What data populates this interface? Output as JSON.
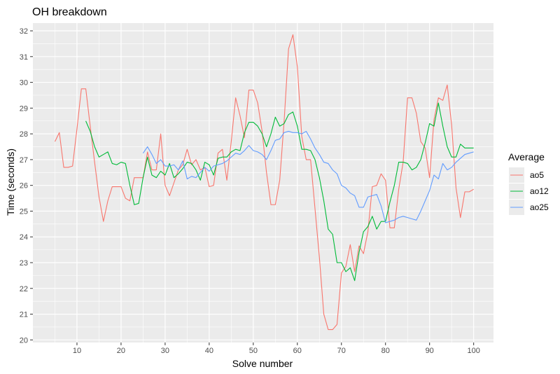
{
  "chart_data": {
    "type": "line",
    "title": "OH breakdown",
    "xlabel": "Solve number",
    "ylabel": "Time (seconds)",
    "xlim": [
      0,
      104.5
    ],
    "ylim": [
      19.9,
      32.3
    ],
    "xticks": [
      10,
      20,
      30,
      40,
      50,
      60,
      70,
      80,
      90,
      100
    ],
    "yticks": [
      20,
      21,
      22,
      23,
      24,
      25,
      26,
      27,
      28,
      29,
      30,
      31,
      32
    ],
    "grid": true,
    "panel_background": "#ebebeb",
    "legend": {
      "title": "Average",
      "placement": "right"
    },
    "series": [
      {
        "name": "ao5",
        "color": "#f8766d",
        "x": [
          5,
          6,
          7,
          8,
          9,
          10,
          11,
          12,
          13,
          14,
          15,
          16,
          17,
          18,
          19,
          20,
          21,
          22,
          23,
          24,
          25,
          26,
          27,
          28,
          29,
          30,
          31,
          32,
          33,
          34,
          35,
          36,
          37,
          38,
          39,
          40,
          41,
          42,
          43,
          44,
          45,
          46,
          47,
          48,
          49,
          50,
          51,
          52,
          53,
          54,
          55,
          56,
          57,
          58,
          59,
          60,
          61,
          62,
          63,
          64,
          65,
          66,
          67,
          68,
          69,
          70,
          71,
          72,
          73,
          74,
          75,
          76,
          77,
          78,
          79,
          80,
          81,
          82,
          83,
          84,
          85,
          86,
          87,
          88,
          89,
          90,
          91,
          92,
          93,
          94,
          95,
          96,
          97,
          98,
          99,
          100
        ],
        "values": [
          27.7,
          28.05,
          26.7,
          26.7,
          26.75,
          28.2,
          29.75,
          29.75,
          28.3,
          26.9,
          25.55,
          24.6,
          25.4,
          25.95,
          25.95,
          25.95,
          25.5,
          25.4,
          26.3,
          26.3,
          26.3,
          27.3,
          26.6,
          26.6,
          28.0,
          26.0,
          25.6,
          26.1,
          26.6,
          26.8,
          27.4,
          26.8,
          27.0,
          26.6,
          26.7,
          25.95,
          26.0,
          27.25,
          27.4,
          26.2,
          27.7,
          29.4,
          28.7,
          27.85,
          29.7,
          29.7,
          29.2,
          28.1,
          26.5,
          25.25,
          25.25,
          26.2,
          28.5,
          31.3,
          31.85,
          30.6,
          27.9,
          27.0,
          27.0,
          25.1,
          23.2,
          21.0,
          20.4,
          20.4,
          20.6,
          22.6,
          22.85,
          23.7,
          22.65,
          23.65,
          23.35,
          24.2,
          25.95,
          26.0,
          26.45,
          26.2,
          24.35,
          24.35,
          25.85,
          26.9,
          29.4,
          29.4,
          28.8,
          27.7,
          27.45,
          26.3,
          28.55,
          29.4,
          29.3,
          29.9,
          28.35,
          25.9,
          24.75,
          25.75,
          25.75,
          25.85
        ]
      },
      {
        "name": "ao12",
        "color": "#00ba38",
        "x": [
          12,
          13,
          14,
          15,
          16,
          17,
          18,
          19,
          20,
          21,
          22,
          23,
          24,
          25,
          26,
          27,
          28,
          29,
          30,
          31,
          32,
          33,
          34,
          35,
          36,
          37,
          38,
          39,
          40,
          41,
          42,
          43,
          44,
          45,
          46,
          47,
          48,
          49,
          50,
          51,
          52,
          53,
          54,
          55,
          56,
          57,
          58,
          59,
          60,
          61,
          62,
          63,
          64,
          65,
          66,
          67,
          68,
          69,
          70,
          71,
          72,
          73,
          74,
          75,
          76,
          77,
          78,
          79,
          80,
          81,
          82,
          83,
          84,
          85,
          86,
          87,
          88,
          89,
          90,
          91,
          92,
          93,
          94,
          95,
          96,
          97,
          98,
          99,
          100
        ],
        "values": [
          28.5,
          28.1,
          27.5,
          27.1,
          27.2,
          27.3,
          26.85,
          26.8,
          26.9,
          26.85,
          26.0,
          25.25,
          25.3,
          26.3,
          27.1,
          26.4,
          26.3,
          26.55,
          26.4,
          26.85,
          26.3,
          26.45,
          26.65,
          26.9,
          26.85,
          26.6,
          26.2,
          26.9,
          26.8,
          26.4,
          27.05,
          27.1,
          27.1,
          27.3,
          27.4,
          27.35,
          28.05,
          28.45,
          28.45,
          28.3,
          28.0,
          27.5,
          28.0,
          28.65,
          28.3,
          28.4,
          28.75,
          28.85,
          28.3,
          27.4,
          27.4,
          27.35,
          27.0,
          26.3,
          25.4,
          24.3,
          24.1,
          23.0,
          23.0,
          22.65,
          22.8,
          22.3,
          23.4,
          24.2,
          24.4,
          24.8,
          24.3,
          24.6,
          24.6,
          25.35,
          26.0,
          26.9,
          26.9,
          26.85,
          26.6,
          26.7,
          27.0,
          27.65,
          28.4,
          28.3,
          29.2,
          28.3,
          27.5,
          27.1,
          27.1,
          27.6,
          27.45,
          27.45,
          27.45
        ]
      },
      {
        "name": "ao25",
        "color": "#619cff",
        "x": [
          25,
          26,
          27,
          28,
          29,
          30,
          31,
          32,
          33,
          34,
          35,
          36,
          37,
          38,
          39,
          40,
          41,
          42,
          43,
          44,
          45,
          46,
          47,
          48,
          49,
          50,
          51,
          52,
          53,
          54,
          55,
          56,
          57,
          58,
          59,
          60,
          61,
          62,
          63,
          64,
          65,
          66,
          67,
          68,
          69,
          70,
          71,
          72,
          73,
          74,
          75,
          76,
          77,
          78,
          79,
          80,
          81,
          82,
          83,
          84,
          85,
          86,
          87,
          88,
          89,
          90,
          91,
          92,
          93,
          94,
          95,
          96,
          97,
          98,
          99,
          100
        ],
        "values": [
          27.25,
          27.5,
          27.2,
          26.85,
          27.0,
          26.75,
          26.75,
          26.8,
          26.6,
          26.95,
          26.25,
          26.35,
          26.3,
          26.5,
          26.7,
          26.55,
          26.75,
          26.8,
          26.85,
          26.95,
          27.1,
          27.25,
          27.2,
          27.35,
          27.55,
          27.35,
          27.3,
          27.2,
          27.0,
          27.35,
          27.75,
          27.8,
          28.05,
          28.1,
          28.05,
          28.05,
          28.0,
          28.1,
          27.8,
          27.45,
          27.2,
          26.9,
          26.85,
          26.6,
          26.45,
          26.0,
          25.9,
          25.7,
          25.6,
          25.15,
          25.15,
          25.55,
          25.6,
          25.65,
          25.2,
          24.55,
          24.6,
          24.65,
          24.75,
          24.8,
          24.75,
          24.7,
          24.65,
          25.0,
          25.4,
          25.8,
          26.4,
          26.25,
          26.85,
          26.6,
          26.7,
          26.9,
          27.05,
          27.2,
          27.25,
          27.3
        ]
      }
    ]
  }
}
